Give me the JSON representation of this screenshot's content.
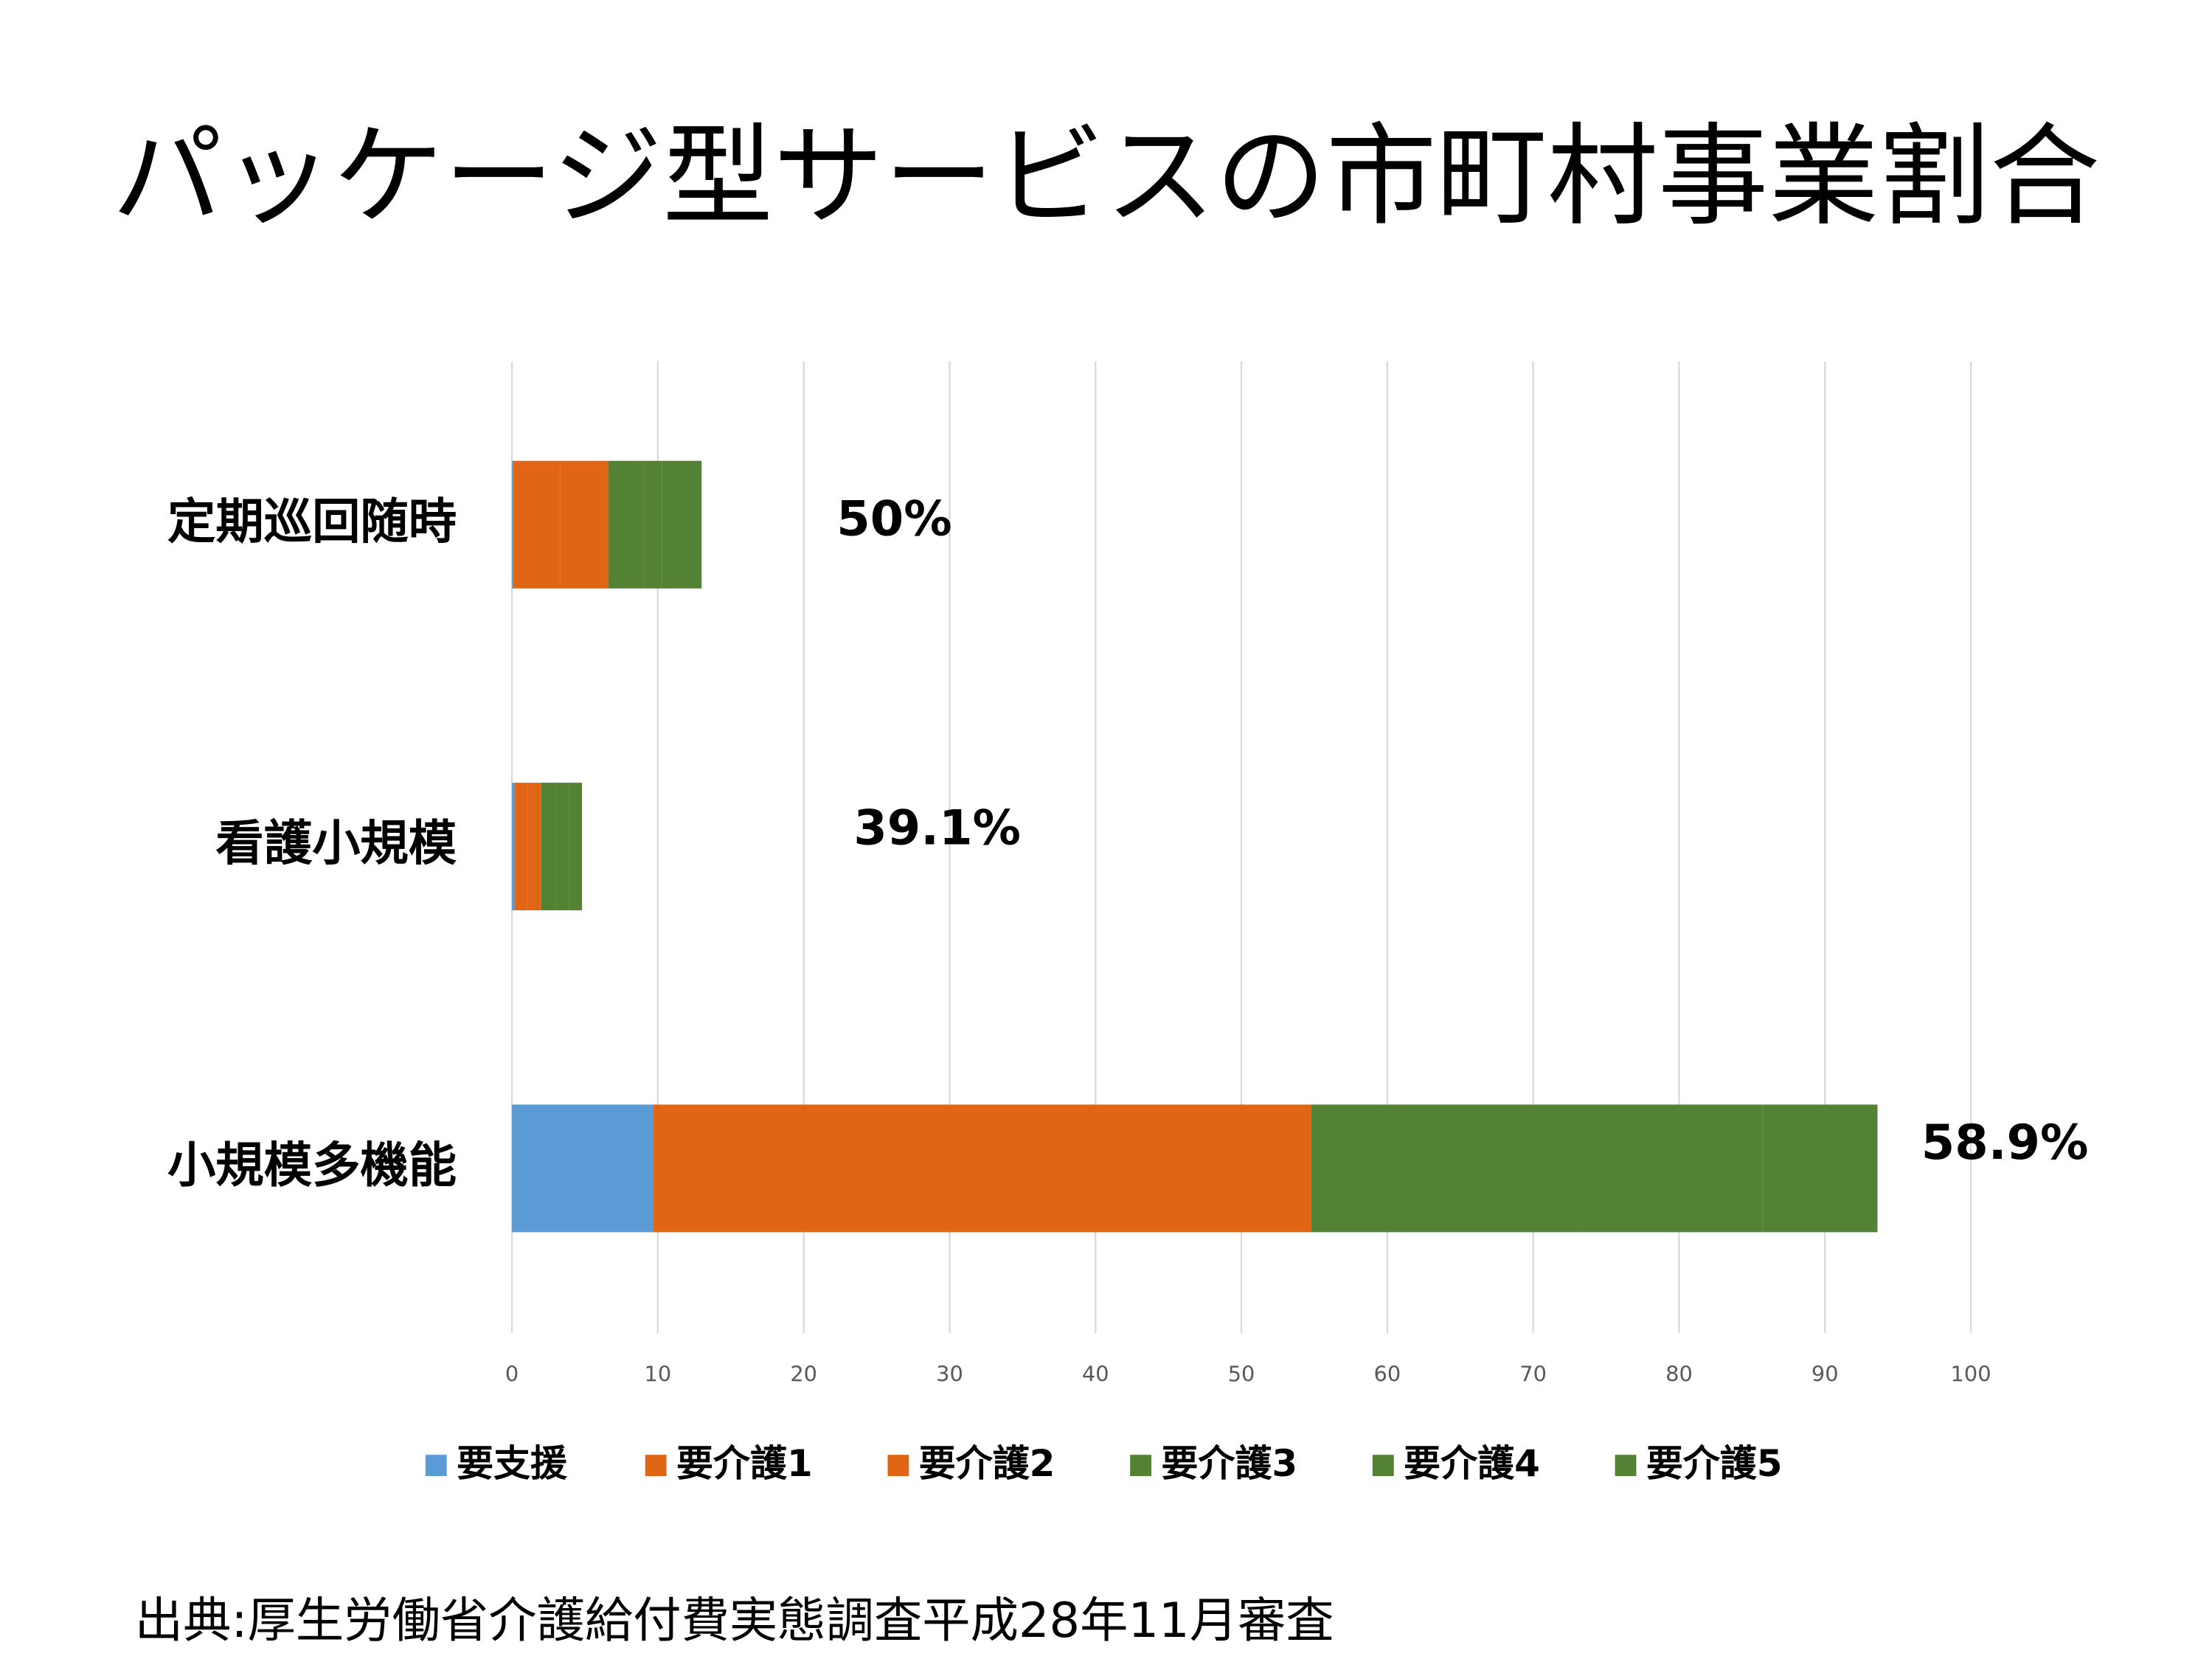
{
  "chart_data": {
    "type": "stacked_bar_horizontal",
    "title": "パッケージ型サービスの市町村事業割合",
    "categories": [
      "定期巡回随時",
      "看護小規模",
      "小規模多機能"
    ],
    "series": [
      {
        "name": "要支援",
        "color": "#5b9bd5",
        "values": [
          0.1,
          0.2,
          9.7
        ]
      },
      {
        "name": "要介護1",
        "color": "#e06616",
        "values": [
          3.2,
          0.9,
          22.5
        ]
      },
      {
        "name": "要介護2",
        "color": "#e06616",
        "values": [
          3.3,
          0.9,
          22.6
        ]
      },
      {
        "name": "要介護3",
        "color": "#548235",
        "values": [
          2.4,
          1.0,
          18.4
        ]
      },
      {
        "name": "要介護4",
        "color": "#548235",
        "values": [
          1.3,
          0.9,
          12.5
        ]
      },
      {
        "name": "要介護5",
        "color": "#548235",
        "values": [
          2.7,
          0.9,
          7.9
        ]
      }
    ],
    "xlim": [
      0,
      100
    ],
    "xticks": [
      0,
      10,
      20,
      30,
      40,
      50,
      60,
      70,
      80,
      90,
      100
    ],
    "grid": true,
    "legend": "bottom",
    "annotations": [
      "50%",
      "39.1%",
      "58.9%"
    ],
    "source": "出典:厚生労働省介護給付費実態調査平成28年11月審査"
  }
}
